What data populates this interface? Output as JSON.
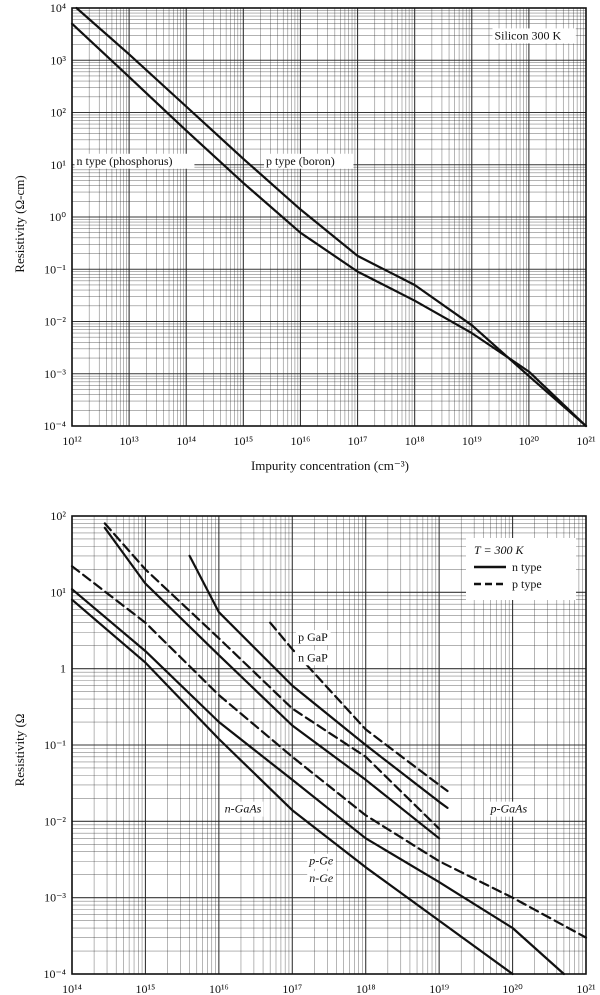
{
  "chart_data": [
    {
      "type": "line",
      "xscale": "log",
      "yscale": "log",
      "xlim": [
        1000000000000.0,
        1e+21
      ],
      "ylim": [
        0.0001,
        10000.0
      ],
      "xlabel": "Impurity concentration (cm⁻³)",
      "ylabel": "Resistivity (Ω-cm)",
      "xticks": [
        {
          "value": 1000000000000.0,
          "label": "10¹²"
        },
        {
          "value": 10000000000000.0,
          "label": "10¹³"
        },
        {
          "value": 100000000000000.0,
          "label": "10¹⁴"
        },
        {
          "value": 1000000000000000.0,
          "label": "10¹⁵"
        },
        {
          "value": 1e+16,
          "label": "10¹⁶"
        },
        {
          "value": 1e+17,
          "label": "10¹⁷"
        },
        {
          "value": 1e+18,
          "label": "10¹⁸"
        },
        {
          "value": 1e+19,
          "label": "10¹⁹"
        },
        {
          "value": 1e+20,
          "label": "10²⁰"
        },
        {
          "value": 1e+21,
          "label": "10²¹"
        }
      ],
      "yticks": [
        {
          "value": 10000.0,
          "label": "10⁴"
        },
        {
          "value": 1000.0,
          "label": "10³"
        },
        {
          "value": 100.0,
          "label": "10²"
        },
        {
          "value": 10.0,
          "label": "10¹"
        },
        {
          "value": 1.0,
          "label": "10⁰"
        },
        {
          "value": 0.1,
          "label": "10⁻¹"
        },
        {
          "value": 0.01,
          "label": "10⁻²"
        },
        {
          "value": 0.001,
          "label": "10⁻³"
        },
        {
          "value": 0.0001,
          "label": "10⁻⁴"
        }
      ],
      "grid": true,
      "series": [
        {
          "name": "p type (boron)",
          "style": "solid",
          "x": [
            1200000000000.0,
            10000000000000.0,
            100000000000000.0,
            1000000000000000.0,
            1e+16,
            1e+17,
            1e+18,
            1e+19,
            1e+20,
            1e+21
          ],
          "y": [
            10000,
            1300,
            130,
            13,
            1.4,
            0.18,
            0.05,
            0.0085,
            0.0009,
            0.0001
          ]
        },
        {
          "name": "n type (phosphorus)",
          "style": "solid",
          "x": [
            1000000000000.0,
            10000000000000.0,
            100000000000000.0,
            1000000000000000.0,
            1e+16,
            1e+17,
            1e+18,
            1e+19,
            1e+20,
            1e+21
          ],
          "y": [
            5000,
            480,
            45,
            4.5,
            0.5,
            0.09,
            0.025,
            0.006,
            0.0011,
            0.0001
          ]
        }
      ],
      "annotations": [
        {
          "text": "Silicon 300 K",
          "x": 2.5e+19,
          "y": 2500
        },
        {
          "text": "n type (phosphorus)",
          "x": 1200000000000.0,
          "y": 10
        },
        {
          "text": "p type (boron)",
          "x": 2500000000000000.0,
          "y": 10
        }
      ]
    },
    {
      "type": "line",
      "xscale": "log",
      "yscale": "log",
      "xlim": [
        100000000000000.0,
        1e+21
      ],
      "ylim": [
        0.0001,
        100.0
      ],
      "xlabel": "",
      "ylabel": "Resistivity (Ω",
      "xticks": [
        {
          "value": 100000000000000.0,
          "label": "10¹⁴"
        },
        {
          "value": 1000000000000000.0,
          "label": "10¹⁵"
        },
        {
          "value": 1e+16,
          "label": "10¹⁶"
        },
        {
          "value": 1e+17,
          "label": "10¹⁷"
        },
        {
          "value": 1e+18,
          "label": "10¹⁸"
        },
        {
          "value": 1e+19,
          "label": "10¹⁹"
        },
        {
          "value": 1e+20,
          "label": "10²⁰"
        },
        {
          "value": 1e+21,
          "label": "10²¹"
        }
      ],
      "yticks": [
        {
          "value": 100.0,
          "label": "10²"
        },
        {
          "value": 10.0,
          "label": "10¹"
        },
        {
          "value": 1.0,
          "label": "1"
        },
        {
          "value": 0.1,
          "label": "10⁻¹"
        },
        {
          "value": 0.01,
          "label": "10⁻²"
        },
        {
          "value": 0.001,
          "label": "10⁻³"
        },
        {
          "value": 0.0001,
          "label": "10⁻⁴"
        }
      ],
      "grid": true,
      "legend": {
        "placement": "top-right",
        "title": "T = 300 K",
        "entries": [
          {
            "label": "n type",
            "style": "solid"
          },
          {
            "label": "p type",
            "style": "dashed"
          }
        ]
      },
      "series": [
        {
          "name": "p GaP",
          "style": "dashed",
          "x": [
            5e+16,
            1e+17,
            1e+18,
            1e+19,
            1.3e+19
          ],
          "y": [
            4,
            1.8,
            0.16,
            0.03,
            0.025
          ]
        },
        {
          "name": "n GaP",
          "style": "solid",
          "x": [
            4000000000000000.0,
            1e+16,
            1e+17,
            1e+18,
            1e+19,
            1.3e+19
          ],
          "y": [
            30,
            5.5,
            0.6,
            0.1,
            0.018,
            0.015
          ]
        },
        {
          "name": "p-GaAs",
          "style": "dashed",
          "x": [
            280000000000000.0,
            1000000000000000.0,
            1e+16,
            1e+17,
            1e+18,
            1e+19
          ],
          "y": [
            80,
            20,
            2.5,
            0.3,
            0.07,
            0.008
          ]
        },
        {
          "name": "n-GaAs",
          "style": "solid",
          "x": [
            280000000000000.0,
            1000000000000000.0,
            1e+16,
            1e+17,
            1e+18,
            1e+19
          ],
          "y": [
            70,
            13,
            1.5,
            0.18,
            0.035,
            0.006
          ]
        },
        {
          "name": "p-Ge",
          "style": "dashed",
          "x": [
            100000000000000.0,
            1000000000000000.0,
            1e+16,
            1e+17,
            1e+18,
            1e+19,
            1e+20,
            1e+21
          ],
          "y": [
            22,
            4,
            0.45,
            0.07,
            0.012,
            0.003,
            0.001,
            0.0003
          ]
        },
        {
          "name": "n-Ge",
          "style": "solid",
          "x": [
            100000000000000.0,
            1000000000000000.0,
            1e+16,
            1e+17,
            1e+18,
            1e+19,
            1e+20,
            5e+20
          ],
          "y": [
            11,
            1.7,
            0.2,
            0.035,
            0.006,
            0.0016,
            0.0004,
            0.0001
          ]
        },
        {
          "name": "",
          "style": "solid",
          "x": [
            100000000000000.0,
            1000000000000000.0,
            1e+16,
            1e+17,
            1e+18,
            1e+19,
            1e+20
          ],
          "y": [
            8,
            1.2,
            0.12,
            0.014,
            0.0025,
            0.0005,
            0.0001
          ]
        }
      ],
      "annotations": [
        {
          "text": "p GaP",
          "x": 1.2e+17,
          "y": 2.3
        },
        {
          "text": "n GaP",
          "x": 1.2e+17,
          "y": 1.25
        },
        {
          "text": "n-GaAs",
          "x": 1.2e+16,
          "y": 0.013
        },
        {
          "text": "p-GaAs",
          "x": 5e+19,
          "y": 0.013
        },
        {
          "text": "p-Ge",
          "x": 1.7e+17,
          "y": 0.0027
        },
        {
          "text": "n-Ge",
          "x": 1.7e+17,
          "y": 0.0016
        }
      ]
    }
  ]
}
